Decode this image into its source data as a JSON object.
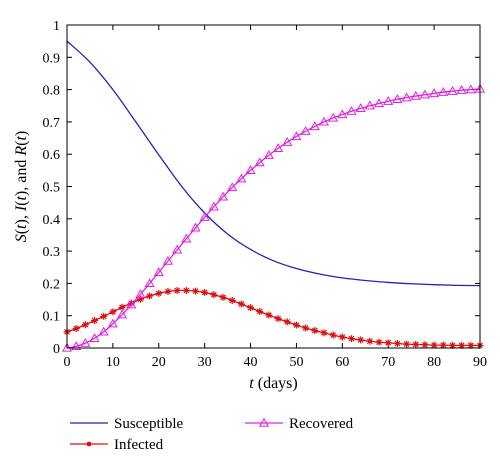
{
  "chart_data": {
    "type": "line",
    "xlabel": "t (days)",
    "ylabel": "S(t), I(t), and R(t)",
    "xlim": [
      0,
      90
    ],
    "ylim": [
      0,
      1
    ],
    "xticks": [
      "0",
      "10",
      "20",
      "30",
      "40",
      "50",
      "60",
      "70",
      "80",
      "90"
    ],
    "yticks": [
      "0",
      "0.1",
      "0.2",
      "0.3",
      "0.4",
      "0.5",
      "0.6",
      "0.7",
      "0.8",
      "0.9",
      "1"
    ],
    "grid": false,
    "legend_placement": "below",
    "series": [
      {
        "name": "Susceptible",
        "color": "#2323b4",
        "marker": "none",
        "x": [
          0,
          5,
          10,
          15,
          20,
          25,
          30,
          35,
          40,
          45,
          50,
          55,
          60,
          65,
          70,
          75,
          80,
          85,
          90
        ],
        "y": [
          0.95,
          0.885,
          0.8,
          0.7,
          0.598,
          0.5,
          0.418,
          0.353,
          0.305,
          0.27,
          0.246,
          0.229,
          0.217,
          0.209,
          0.203,
          0.199,
          0.196,
          0.194,
          0.193
        ]
      },
      {
        "name": "Infected",
        "color": "#dd1010",
        "marker": "star",
        "x": [
          0,
          2,
          4,
          6,
          8,
          10,
          12,
          14,
          16,
          18,
          20,
          22,
          24,
          26,
          28,
          30,
          32,
          34,
          36,
          38,
          40,
          42,
          44,
          46,
          48,
          50,
          52,
          54,
          56,
          58,
          60,
          62,
          64,
          66,
          68,
          70,
          72,
          74,
          76,
          78,
          80,
          82,
          84,
          86,
          88,
          90
        ],
        "y": [
          0.05,
          0.06,
          0.072,
          0.085,
          0.098,
          0.112,
          0.126,
          0.139,
          0.151,
          0.161,
          0.169,
          0.175,
          0.178,
          0.178,
          0.176,
          0.172,
          0.165,
          0.157,
          0.147,
          0.136,
          0.125,
          0.113,
          0.102,
          0.091,
          0.081,
          0.071,
          0.062,
          0.054,
          0.047,
          0.04,
          0.034,
          0.029,
          0.025,
          0.021,
          0.018,
          0.016,
          0.014,
          0.012,
          0.011,
          0.01,
          0.009,
          0.009,
          0.008,
          0.008,
          0.008,
          0.008
        ]
      },
      {
        "name": "Recovered",
        "color": "#e020e0",
        "marker": "triangle",
        "x": [
          0,
          2,
          4,
          6,
          8,
          10,
          12,
          14,
          16,
          18,
          20,
          22,
          24,
          26,
          28,
          30,
          32,
          34,
          36,
          38,
          40,
          42,
          44,
          46,
          48,
          50,
          52,
          54,
          56,
          58,
          60,
          62,
          64,
          66,
          68,
          70,
          72,
          74,
          76,
          78,
          80,
          82,
          84,
          86,
          88,
          90
        ],
        "y": [
          0.0,
          0.005,
          0.015,
          0.03,
          0.05,
          0.075,
          0.103,
          0.134,
          0.166,
          0.2,
          0.234,
          0.269,
          0.304,
          0.338,
          0.372,
          0.405,
          0.437,
          0.468,
          0.497,
          0.524,
          0.55,
          0.574,
          0.597,
          0.618,
          0.637,
          0.655,
          0.671,
          0.686,
          0.7,
          0.712,
          0.723,
          0.733,
          0.742,
          0.75,
          0.757,
          0.764,
          0.77,
          0.775,
          0.78,
          0.784,
          0.788,
          0.792,
          0.795,
          0.798,
          0.8,
          0.802
        ]
      }
    ]
  }
}
